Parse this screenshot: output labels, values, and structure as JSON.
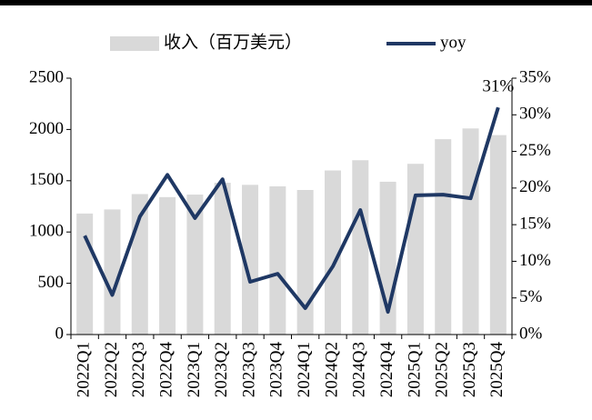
{
  "chart_data": {
    "type": "bar_line",
    "categories": [
      "2022Q1",
      "2022Q2",
      "2022Q3",
      "2022Q4",
      "2023Q1",
      "2023Q2",
      "2023Q3",
      "2023Q4",
      "2024Q1",
      "2024Q2",
      "2024Q3",
      "2024Q4",
      "2025Q1",
      "2025Q2",
      "2025Q3",
      "2025Q4"
    ],
    "series": [
      {
        "name": "收入（百万美元）",
        "color": "#d9d9d9",
        "kind": "bar",
        "values": [
          1180,
          1220,
          1370,
          1340,
          1365,
          1480,
          1460,
          1445,
          1410,
          1600,
          1700,
          1490,
          1665,
          1905,
          2010,
          1945
        ]
      },
      {
        "name": "yoy",
        "color": "#1f3864",
        "kind": "line",
        "axis": "y2",
        "values": [
          13.5,
          5.4,
          16.1,
          21.8,
          15.9,
          21.2,
          7.2,
          8.3,
          3.6,
          9.3,
          17.0,
          3.1,
          19.0,
          19.1,
          18.6,
          31
        ],
        "value_labels": [
          null,
          null,
          null,
          null,
          null,
          null,
          null,
          null,
          null,
          null,
          null,
          null,
          null,
          null,
          null,
          "31%"
        ]
      }
    ],
    "ylim": [
      0,
      2500
    ],
    "yticks": [
      0,
      500,
      1000,
      1500,
      2000,
      2500
    ],
    "y2lim": [
      0,
      35
    ],
    "y2ticks": [
      {
        "value": 0,
        "label": "0%"
      },
      {
        "value": 5,
        "label": "5%"
      },
      {
        "value": 10,
        "label": "10%"
      },
      {
        "value": 15,
        "label": "15%"
      },
      {
        "value": 20,
        "label": "20%"
      },
      {
        "value": 25,
        "label": "25%"
      },
      {
        "value": 30,
        "label": "30%"
      },
      {
        "value": 35,
        "label": "35%"
      }
    ],
    "legend": "top"
  }
}
